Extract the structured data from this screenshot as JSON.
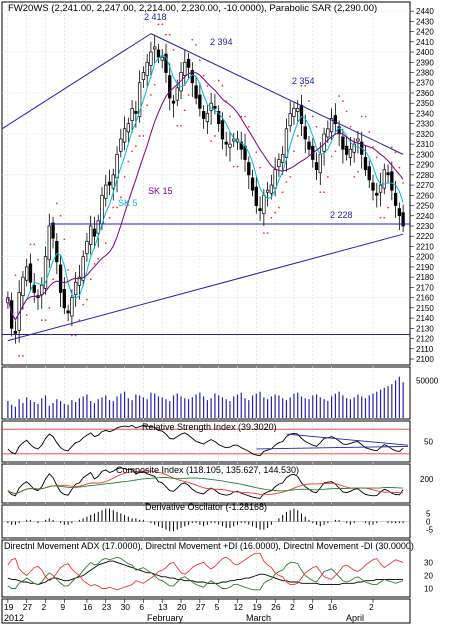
{
  "chart_data": [
    {
      "panel": "price",
      "type": "candlestick",
      "title": "FW20WS (2,241.00, 2,247.00, 2,214.00, 2,230.00, -10.0000), Parabolic SAR (2,290.00)",
      "ylim": [
        2100,
        2445
      ],
      "y_ticks": [
        2100,
        2110,
        2120,
        2130,
        2140,
        2150,
        2160,
        2170,
        2180,
        2190,
        2200,
        2210,
        2220,
        2230,
        2240,
        2250,
        2260,
        2270,
        2280,
        2290,
        2300,
        2310,
        2320,
        2330,
        2340,
        2350,
        2360,
        2370,
        2380,
        2390,
        2400,
        2410,
        2420,
        2430,
        2440
      ],
      "close": [
        2160,
        2130,
        2125,
        2165,
        2180,
        2190,
        2175,
        2165,
        2160,
        2172,
        2200,
        2230,
        2218,
        2195,
        2165,
        2150,
        2145,
        2160,
        2175,
        2180,
        2200,
        2215,
        2230,
        2220,
        2235,
        2260,
        2270,
        2270,
        2280,
        2300,
        2315,
        2325,
        2330,
        2345,
        2340,
        2370,
        2380,
        2390,
        2400,
        2405,
        2395,
        2395,
        2380,
        2355,
        2350,
        2365,
        2380,
        2390,
        2385,
        2370,
        2355,
        2345,
        2335,
        2340,
        2350,
        2345,
        2330,
        2315,
        2310,
        2310,
        2315,
        2315,
        2305,
        2295,
        2280,
        2265,
        2250,
        2245,
        2260,
        2265,
        2270,
        2285,
        2295,
        2300,
        2325,
        2340,
        2345,
        2345,
        2330,
        2315,
        2305,
        2295,
        2285,
        2300,
        2320,
        2325,
        2335,
        2330,
        2320,
        2305,
        2300,
        2305,
        2310,
        2315,
        2300,
        2285,
        2275,
        2265,
        2260,
        2270,
        2285,
        2280,
        2265,
        2250,
        2240,
        2230
      ],
      "annotations": [
        "2 418",
        "2 394",
        "2 354",
        "2 228",
        "SK 5",
        "SK 15"
      ]
    },
    {
      "panel": "volume",
      "type": "bar",
      "y_ticks": [
        50000
      ],
      "values": [
        18,
        14,
        12,
        20,
        16,
        22,
        19,
        17,
        15,
        21,
        24,
        13,
        16,
        20,
        18,
        15,
        14,
        19,
        17,
        21,
        23,
        25,
        18,
        16,
        20,
        22,
        24,
        19,
        18,
        23,
        26,
        28,
        21,
        19,
        25,
        24,
        22,
        20,
        27,
        26,
        23,
        22,
        20,
        18,
        24,
        26,
        23,
        21,
        20,
        22,
        25,
        27,
        23,
        19,
        21,
        26,
        24,
        22,
        20,
        18,
        23,
        25,
        27,
        21,
        19,
        24,
        26,
        28,
        22,
        20,
        23,
        25,
        24,
        21,
        19,
        22,
        26,
        27,
        23,
        21,
        20,
        24,
        25,
        22,
        20,
        18,
        23,
        26,
        28,
        24,
        21,
        20,
        22,
        25,
        23,
        21,
        24,
        26,
        28,
        30,
        32,
        34,
        36,
        40,
        44,
        38
      ]
    },
    {
      "panel": "rsi",
      "type": "line",
      "title": "Relative Strength Index (39.3020)",
      "y_ticks": [
        50
      ],
      "values": [
        38,
        32,
        30,
        42,
        48,
        52,
        45,
        40,
        38,
        44,
        55,
        62,
        58,
        48,
        40,
        36,
        35,
        42,
        48,
        50,
        56,
        60,
        64,
        58,
        60,
        66,
        68,
        66,
        68,
        72,
        74,
        75,
        74,
        76,
        72,
        74,
        76,
        75,
        74,
        73,
        68,
        67,
        62,
        55,
        54,
        58,
        62,
        64,
        60,
        55,
        50,
        48,
        46,
        50,
        53,
        50,
        45,
        42,
        40,
        41,
        44,
        44,
        40,
        37,
        34,
        30,
        28,
        27,
        34,
        36,
        38,
        44,
        48,
        50,
        58,
        62,
        63,
        62,
        55,
        50,
        47,
        44,
        42,
        48,
        55,
        56,
        58,
        55,
        51,
        46,
        45,
        47,
        49,
        50,
        45,
        40,
        38,
        36,
        35,
        40,
        45,
        42,
        38,
        35,
        34,
        39
      ]
    },
    {
      "panel": "composite",
      "type": "line",
      "title": "Composite Index (118.105, 135.627, 144.530)",
      "y_ticks": [
        200
      ],
      "series": [
        {
          "values": [
            110,
            80,
            70,
            130,
            160,
            180,
            150,
            120,
            110,
            140,
            200,
            240,
            210,
            150,
            100,
            80,
            75,
            120,
            160,
            170,
            210,
            230,
            250,
            200,
            220,
            260,
            270,
            250,
            260,
            280,
            285,
            280,
            270,
            275,
            240,
            250,
            255,
            240,
            230,
            220,
            180,
            170,
            140,
            110,
            105,
            130,
            160,
            170,
            150,
            120,
            100,
            90,
            85,
            110,
            130,
            115,
            90,
            80,
            75,
            80,
            100,
            105,
            90,
            80,
            70,
            60,
            55,
            50,
            85,
            100,
            110,
            140,
            160,
            170,
            210,
            230,
            235,
            220,
            170,
            140,
            120,
            100,
            95,
            130,
            170,
            175,
            180,
            160,
            130,
            100,
            95,
            105,
            120,
            125,
            100,
            80,
            75,
            70,
            72,
            100,
            120,
            110,
            90,
            80,
            78,
            118
          ]
        }
      ]
    },
    {
      "panel": "oscillator",
      "type": "bar",
      "title": "Derivative Oscilator (-1.28168)",
      "y_ticks": [
        5,
        0,
        -5
      ],
      "values": [
        -1,
        -2,
        -2,
        -1,
        0,
        1,
        1,
        0,
        -1,
        0,
        1,
        2,
        1,
        0,
        -1,
        -2,
        -2,
        -1,
        0,
        1,
        2,
        3,
        4,
        5,
        6,
        7,
        8,
        8,
        7,
        6,
        5,
        4,
        3,
        2,
        2,
        1,
        1,
        0,
        -1,
        -2,
        -3,
        -4,
        -5,
        -6,
        -6,
        -5,
        -4,
        -3,
        -2,
        -1,
        -1,
        -2,
        -3,
        -2,
        -1,
        -1,
        -2,
        -3,
        -4,
        -4,
        -3,
        -2,
        -1,
        -1,
        -2,
        -3,
        -4,
        -5,
        -5,
        -4,
        -2,
        0,
        2,
        4,
        6,
        7,
        8,
        7,
        5,
        3,
        1,
        -1,
        -2,
        -3,
        -2,
        -1,
        0,
        1,
        1,
        0,
        -1,
        -2,
        -1,
        0,
        0,
        -1,
        -2,
        -2,
        -1,
        0,
        0,
        -1,
        -1,
        -1,
        -1,
        -1
      ]
    },
    {
      "panel": "dmi",
      "type": "line",
      "title": "Directnl Movement ADX (17.0000), Directnl Movement +DI (16.0000), Directnl Movement -DI (30.0000)",
      "y_ticks": [
        30,
        20,
        10
      ],
      "series": [
        {
          "name": "ADX",
          "values": [
            18,
            17,
            17,
            16,
            15,
            15,
            14,
            14,
            13,
            14,
            15,
            17,
            18,
            18,
            17,
            16,
            16,
            17,
            18,
            19,
            20,
            22,
            24,
            26,
            28,
            29,
            30,
            31,
            31,
            30,
            29,
            28,
            27,
            26,
            25,
            24,
            23,
            22,
            22,
            21,
            20,
            19,
            19,
            18,
            18,
            17,
            17,
            16,
            16,
            16,
            15,
            15,
            15,
            14,
            14,
            14,
            14,
            15,
            15,
            16,
            16,
            17,
            17,
            18,
            18,
            19,
            20,
            21,
            21,
            20,
            19,
            18,
            17,
            16,
            16,
            15,
            15,
            15,
            14,
            14,
            14,
            14,
            14,
            13,
            13,
            13,
            13,
            13,
            13,
            14,
            14,
            14,
            14,
            15,
            15,
            16,
            16,
            16,
            17,
            17,
            17,
            17,
            17,
            17,
            17,
            17
          ]
        },
        {
          "name": "+DI",
          "values": [
            12,
            10,
            10,
            14,
            16,
            18,
            16,
            14,
            13,
            15,
            19,
            22,
            20,
            17,
            14,
            12,
            12,
            15,
            18,
            20,
            24,
            27,
            30,
            28,
            29,
            32,
            33,
            32,
            33,
            34,
            33,
            31,
            29,
            28,
            24,
            25,
            26,
            24,
            22,
            20,
            17,
            16,
            14,
            12,
            12,
            15,
            18,
            19,
            17,
            15,
            13,
            12,
            11,
            14,
            16,
            14,
            12,
            10,
            10,
            11,
            13,
            13,
            12,
            11,
            10,
            9,
            9,
            9,
            14,
            16,
            17,
            21,
            23,
            24,
            28,
            30,
            30,
            29,
            24,
            20,
            18,
            16,
            15,
            19,
            23,
            24,
            25,
            22,
            19,
            16,
            15,
            16,
            18,
            19,
            17,
            15,
            14,
            13,
            13,
            15,
            17,
            16,
            15,
            14,
            15,
            16
          ]
        },
        {
          "name": "-DI",
          "values": [
            28,
            32,
            33,
            25,
            22,
            20,
            23,
            26,
            27,
            24,
            19,
            16,
            18,
            22,
            26,
            28,
            29,
            25,
            22,
            20,
            16,
            14,
            12,
            13,
            12,
            10,
            10,
            11,
            10,
            9,
            10,
            11,
            12,
            13,
            16,
            15,
            14,
            16,
            18,
            20,
            23,
            24,
            26,
            29,
            30,
            26,
            22,
            21,
            23,
            26,
            28,
            29,
            30,
            27,
            25,
            27,
            30,
            33,
            34,
            32,
            29,
            28,
            30,
            32,
            34,
            36,
            37,
            37,
            31,
            28,
            26,
            22,
            20,
            19,
            15,
            13,
            13,
            14,
            18,
            22,
            24,
            26,
            27,
            23,
            19,
            18,
            17,
            20,
            23,
            27,
            28,
            26,
            24,
            23,
            25,
            28,
            30,
            32,
            33,
            29,
            26,
            28,
            30,
            32,
            31,
            30
          ]
        }
      ]
    },
    {
      "panel": "x-axis",
      "day_labels": [
        "19",
        "27",
        "2",
        "9",
        "16",
        "23",
        "30",
        "6",
        "13",
        "20",
        "27",
        "5",
        "12",
        "19",
        "26",
        "2",
        "9",
        "16",
        "2"
      ],
      "month_labels": [
        "2012",
        "February",
        "March",
        "April"
      ]
    }
  ]
}
